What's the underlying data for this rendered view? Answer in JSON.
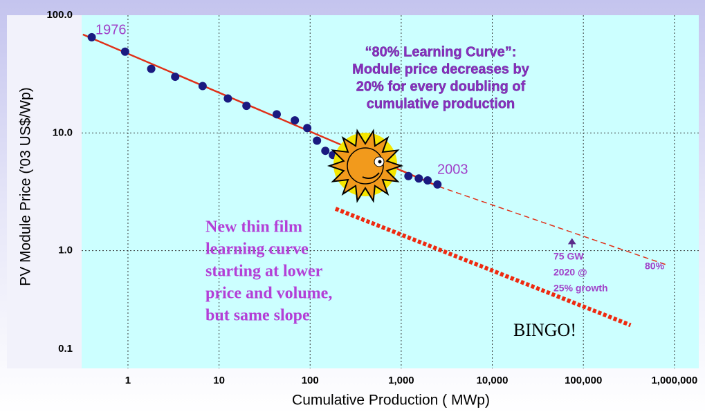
{
  "chart_data": {
    "type": "scatter",
    "xlabel": "Cumulative Production ( MWp)",
    "ylabel": "PV Module Price ('03 US$/Wp)",
    "log_x": true,
    "log_y": true,
    "grid": true,
    "xlim": [
      0.31,
      1850000
    ],
    "ylim": [
      0.1,
      100
    ],
    "xticks": [
      1,
      10,
      100,
      {
        "value": 1000,
        "label": "1,000"
      },
      {
        "value": 10000,
        "label": "10,000"
      },
      {
        "value": 100000,
        "label": "100,000"
      },
      {
        "value": 1000000,
        "label": "1,000,000"
      }
    ],
    "yticks": [
      {
        "value": 0.1,
        "label": "0.1"
      },
      {
        "value": 1,
        "label": "1.0"
      },
      {
        "value": 10,
        "label": "10.0"
      },
      {
        "value": 100,
        "label": "100.0"
      }
    ],
    "series": [
      {
        "color": "#1a1a80",
        "x": [
          0.4,
          0.93,
          1.8,
          3.3,
          6.6,
          12.5,
          20,
          43,
          68,
          93,
          119,
          147,
          178,
          1200,
          1560,
          1950,
          2500
        ],
        "values": [
          65,
          49,
          35,
          30,
          25,
          19.6,
          17,
          14.4,
          12.8,
          11,
          8.6,
          7.05,
          6.5,
          4.3,
          4.1,
          3.95,
          3.65
        ]
      },
      {
        "type": "line",
        "color": "#e03018",
        "x": [
          0.32,
          2600
        ],
        "values": [
          68.6,
          3.5
        ]
      },
      {
        "type": "line",
        "style": "dashed",
        "color": "#e03018",
        "x": [
          2600,
          850000
        ],
        "values": [
          3.5,
          0.75
        ]
      },
      {
        "type": "line",
        "style": "thick-dashed",
        "color": "#ee2a10",
        "x": [
          190,
          330000
        ],
        "values": [
          2.27,
          0.233
        ]
      }
    ],
    "target": {
      "x": 75000,
      "y": 1.15
    },
    "annotations": {
      "learning_curve": [
        "“80% Learning Curve”:",
        "Module price decreases by",
        "20% for every doubling of",
        "cumulative production"
      ],
      "thin_film": [
        "New thin film",
        "learning curve",
        "starting at lower",
        "price and volume,",
        "but same slope"
      ],
      "start_label": "1976",
      "end_label": "2003",
      "slope_label": "80%",
      "bingo": "BINGO!",
      "target": [
        "75 GW",
        "2020 @",
        "25% growth"
      ]
    }
  }
}
